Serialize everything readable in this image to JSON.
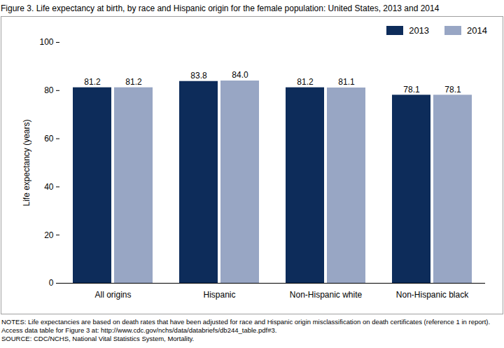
{
  "chart_data": {
    "type": "bar",
    "title": "Figure 3. Life expectancy at birth, by race and Hispanic origin for the female population: United States, 2013 and 2014",
    "y_label": "Life expectancy (years)",
    "categories": [
      "All origins",
      "Hispanic",
      "Non-Hispanic white",
      "Non-Hispanic black"
    ],
    "series": [
      {
        "name": "2013",
        "color": "#0d2c5a",
        "values": [
          81.2,
          83.8,
          81.2,
          78.1
        ],
        "value_labels": [
          "81.2",
          "83.8",
          "81.2",
          "78.1"
        ]
      },
      {
        "name": "2014",
        "color": "#98a6c4",
        "values": [
          81.2,
          84.0,
          81.1,
          78.1
        ],
        "value_labels": [
          "81.2",
          "84.0",
          "81.1",
          "78.1"
        ]
      }
    ],
    "ylim": [
      0,
      100
    ],
    "yticks": [
      0,
      20,
      40,
      60,
      80,
      100
    ],
    "grid": false,
    "legend": "top-right",
    "data_labels": true,
    "notes": "NOTES: Life expectancies are based on death rates that have been adjusted for race and Hispanic origin misclassification on death certificates (reference 1 in report). Access data table for Figure 3 at: http://www.cdc.gov/nchs/data/databriefs/db244_table.pdf#3.",
    "source": "SOURCE: CDC/NCHS, National Vital Statistics System, Mortality."
  }
}
